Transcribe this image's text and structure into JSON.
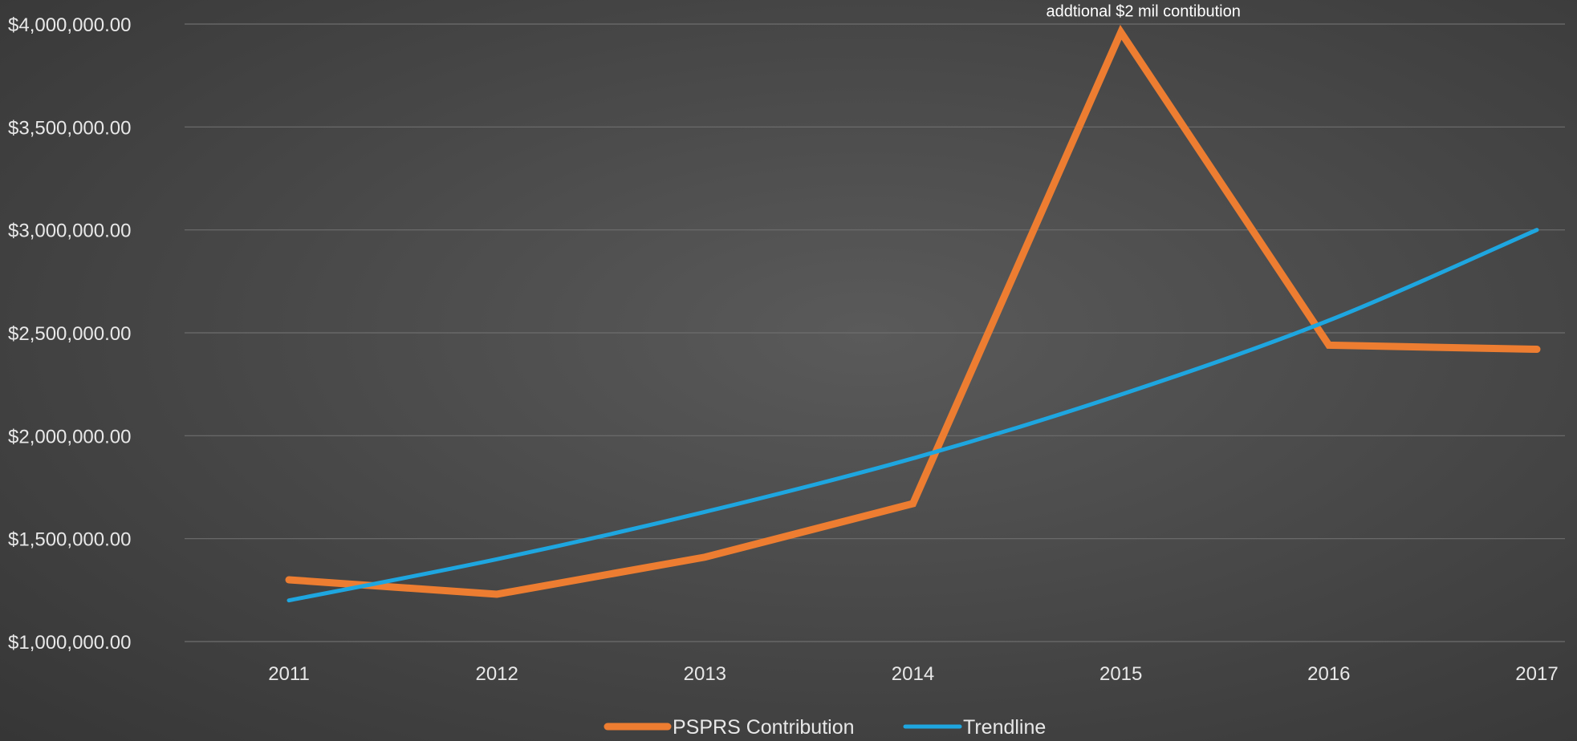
{
  "chart_data": {
    "type": "line",
    "title": "",
    "xlabel": "",
    "ylabel": "",
    "categories": [
      "2011",
      "2012",
      "2013",
      "2014",
      "2015",
      "2016",
      "2017"
    ],
    "ylim": [
      1000000,
      4000000
    ],
    "yticks": [
      1000000,
      1500000,
      2000000,
      2500000,
      3000000,
      3500000,
      4000000
    ],
    "ytick_labels": [
      "$1,000,000.00",
      "$1,500,000.00",
      "$2,000,000.00",
      "$2,500,000.00",
      "$3,000,000.00",
      "$3,500,000.00",
      "$4,000,000.00"
    ],
    "grid": true,
    "legend_position": "bottom",
    "series": [
      {
        "name": "PSPRS Contribution",
        "color": "#ed7d31",
        "values": [
          1300000,
          1230000,
          1410000,
          1670000,
          3960000,
          2440000,
          2420000
        ]
      },
      {
        "name": "Trendline",
        "color": "#1ea6e0",
        "values": [
          1200000,
          1400000,
          1630000,
          1890000,
          2200000,
          2560000,
          3000000
        ]
      }
    ],
    "annotations": [
      {
        "text": "addtional $2 mil contibution",
        "category": "2015",
        "value": 3960000
      }
    ]
  }
}
